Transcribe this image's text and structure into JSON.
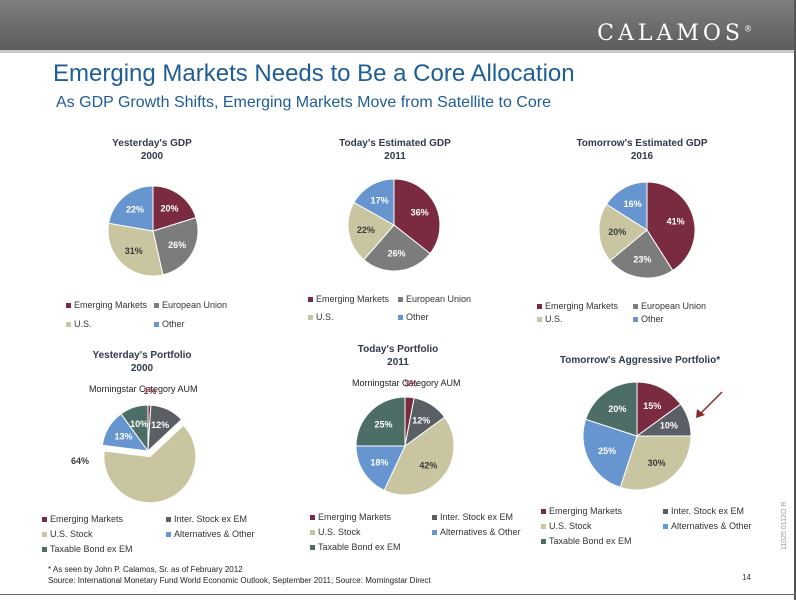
{
  "brand": {
    "name": "CALAMOS",
    "mark": "®"
  },
  "title": "Emerging Markets Needs to Be a Core Allocation",
  "subtitle": "As GDP Growth Shifts, Emerging Markets Move from Satellite to Core",
  "colors": {
    "Emerging Markets": "#7b2b3f",
    "European Union": "#7c7c7c",
    "U.S.": "#c9c5a0",
    "Other": "#6795cf",
    "Inter. Stock ex EM": "#595f65",
    "U.S. Stock": "#c9c5a0",
    "Alternatives & Other": "#6795cf",
    "Taxable Bond ex EM": "#4d6e66"
  },
  "chart_data": [
    {
      "type": "pie",
      "title_line1": "Yesterday's GDP",
      "title_line2": "2000",
      "categories": [
        "Emerging Markets",
        "European Union",
        "U.S.",
        "Other"
      ],
      "values": [
        20,
        26,
        31,
        22
      ],
      "labels": [
        "20%",
        "26%",
        "31%",
        "22%"
      ]
    },
    {
      "type": "pie",
      "title_line1": "Today's Estimated GDP",
      "title_line2": "2011",
      "categories": [
        "Emerging Markets",
        "European Union",
        "U.S.",
        "Other"
      ],
      "values": [
        36,
        26,
        22,
        17
      ],
      "labels": [
        "36%",
        "26%",
        "22%",
        "17%"
      ]
    },
    {
      "type": "pie",
      "title_line1": "Tomorrow's Estimated GDP",
      "title_line2": "2016",
      "categories": [
        "Emerging Markets",
        "European Union",
        "U.S.",
        "Other"
      ],
      "values": [
        41,
        23,
        20,
        16
      ],
      "labels": [
        "41%",
        "23%",
        "20%",
        "16%"
      ]
    },
    {
      "type": "pie",
      "title_line1": "Yesterday's Portfolio",
      "title_line2": "2000",
      "subtitle": "Morningstar Category AUM",
      "categories": [
        "Emerging Markets",
        "Inter. Stock ex EM",
        "U.S. Stock",
        "Alternatives & Other",
        "Taxable Bond ex EM"
      ],
      "values": [
        1,
        12,
        64,
        13,
        10
      ],
      "labels": [
        "1%",
        "12%",
        "64%",
        "13%",
        "10%"
      ]
    },
    {
      "type": "pie",
      "title_line1": "Today's Portfolio",
      "title_line2": "2011",
      "subtitle": "Morningstar Category AUM",
      "categories": [
        "Emerging Markets",
        "Inter. Stock ex EM",
        "U.S. Stock",
        "Alternatives & Other",
        "Taxable Bond ex EM"
      ],
      "values": [
        3,
        12,
        42,
        18,
        25
      ],
      "labels": [
        "3%",
        "12%",
        "42%",
        "18%",
        "25%"
      ]
    },
    {
      "type": "pie",
      "title_line1": "Tomorrow's Aggressive Portfolio*",
      "title_line2": "",
      "categories": [
        "Emerging Markets",
        "Inter. Stock ex EM",
        "U.S. Stock",
        "Alternatives & Other",
        "Taxable Bond ex EM"
      ],
      "values": [
        15,
        10,
        30,
        25,
        20
      ],
      "labels": [
        "15%",
        "10%",
        "30%",
        "25%",
        "20%"
      ]
    }
  ],
  "footnote": "* As seen by John P. Calamos, Sr. as of February 2012",
  "source": "Source: International Monetary Fund World Economic Outlook, September 2011; Source: Morningstar Direct",
  "page_number": "14",
  "doc_code": "11025 0112O R"
}
